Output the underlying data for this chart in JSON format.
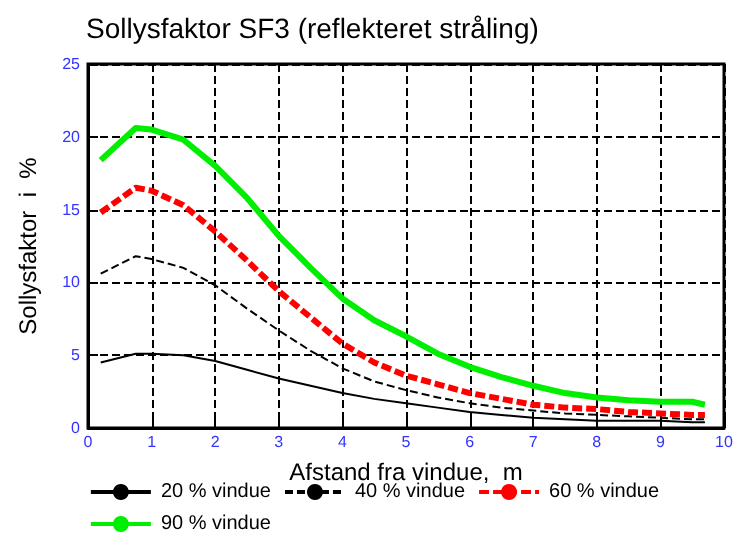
{
  "chart_data": {
    "type": "line",
    "title": "Sollysfaktor SF3 (reflekteret stråling)",
    "xlabel": "Afstand fra vindue,  m",
    "ylabel": "Sollysfaktor  i  %",
    "x": [
      0.2,
      0.75,
      1,
      1.5,
      2,
      2.5,
      3,
      3.5,
      4,
      4.5,
      5,
      5.5,
      6,
      6.5,
      7,
      7.5,
      8,
      8.5,
      9,
      9.5,
      9.7
    ],
    "series": [
      {
        "name": "20 % vindue",
        "color": "#000000",
        "line_style": "solid",
        "values": [
          4.5,
          5.1,
          5.1,
          5.0,
          4.6,
          4.0,
          3.4,
          2.9,
          2.4,
          2.0,
          1.7,
          1.4,
          1.1,
          0.9,
          0.7,
          0.6,
          0.5,
          0.5,
          0.5,
          0.4,
          0.4
        ]
      },
      {
        "name": "40 % vindue",
        "color": "#000000",
        "line_style": "dashed",
        "values": [
          10.6,
          11.8,
          11.6,
          11.0,
          9.8,
          8.2,
          6.7,
          5.3,
          4.1,
          3.2,
          2.6,
          2.1,
          1.7,
          1.4,
          1.2,
          1.0,
          0.9,
          0.8,
          0.7,
          0.6,
          0.6
        ]
      },
      {
        "name": "60 % vindue",
        "color": "#ff0000",
        "line_style": "dashed",
        "values": [
          14.8,
          16.5,
          16.3,
          15.3,
          13.5,
          11.5,
          9.4,
          7.6,
          5.8,
          4.5,
          3.6,
          3.0,
          2.4,
          2.0,
          1.6,
          1.4,
          1.3,
          1.1,
          1.0,
          0.9,
          0.9
        ]
      },
      {
        "name": "90 % vindue",
        "color": "#00ee00",
        "line_style": "solid",
        "values": [
          18.4,
          20.6,
          20.5,
          19.8,
          18.0,
          15.8,
          13.2,
          11.0,
          8.9,
          7.4,
          6.3,
          5.1,
          4.2,
          3.5,
          2.9,
          2.4,
          2.1,
          1.9,
          1.8,
          1.8,
          1.6
        ]
      }
    ],
    "xlim": [
      0,
      10
    ],
    "xticks": [
      0,
      1,
      2,
      3,
      4,
      5,
      6,
      7,
      8,
      9,
      10
    ],
    "ylim": [
      0,
      25
    ],
    "yticks": [
      0,
      5,
      10,
      15,
      20,
      25
    ],
    "grid": true,
    "legend": "bottom",
    "marker": "none"
  }
}
